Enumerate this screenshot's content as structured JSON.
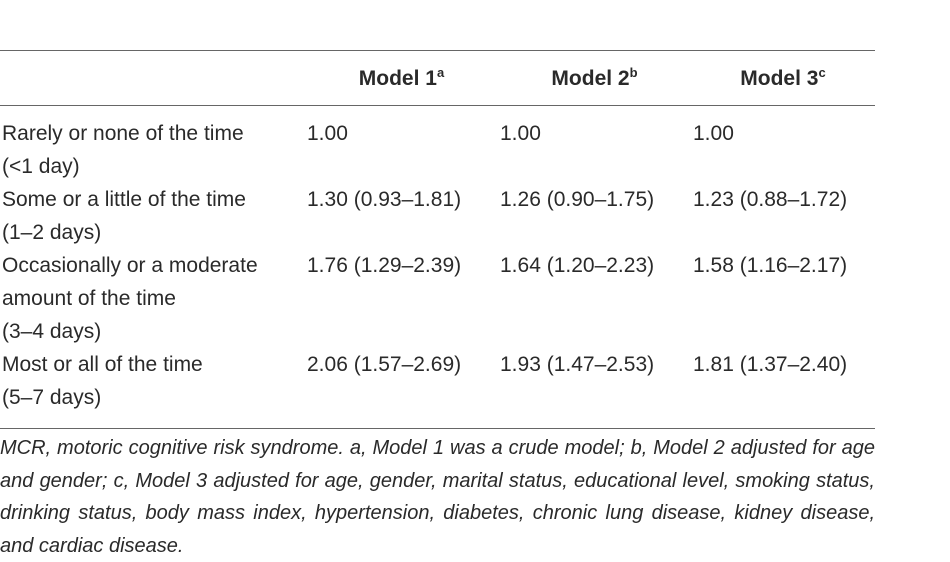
{
  "table": {
    "header": [
      {
        "label": "Model 1",
        "sup": "a"
      },
      {
        "label": "Model 2",
        "sup": "b"
      },
      {
        "label": "Model 3",
        "sup": "c"
      }
    ],
    "rows": [
      {
        "label": [
          "Rarely or none of the time",
          "(<1 day)"
        ],
        "cells": [
          "1.00",
          "1.00",
          "1.00"
        ]
      },
      {
        "label": [
          "Some or a little of the time",
          "(1–2 days)"
        ],
        "cells": [
          "1.30 (0.93–1.81)",
          "1.26 (0.90–1.75)",
          "1.23 (0.88–1.72)"
        ]
      },
      {
        "label": [
          "Occasionally or a moderate",
          "amount of the time",
          "(3–4 days)"
        ],
        "cells": [
          "1.76 (1.29–2.39)",
          "1.64 (1.20–2.23)",
          "1.58 (1.16–2.17)"
        ]
      },
      {
        "label": [
          "Most or all of the time",
          "(5–7 days)"
        ],
        "cells": [
          "2.06 (1.57–2.69)",
          "1.93 (1.47–2.53)",
          "1.81 (1.37–2.40)"
        ]
      }
    ]
  },
  "footnote": "MCR, motoric cognitive risk syndrome. a, Model 1 was a crude model; b, Model 2 adjusted for age and gender; c, Model 3 adjusted for age, gender, marital status, educational level, smoking status, drinking status, body mass index, hypertension, diabetes, chronic lung disease, kidney disease, and cardiac disease."
}
